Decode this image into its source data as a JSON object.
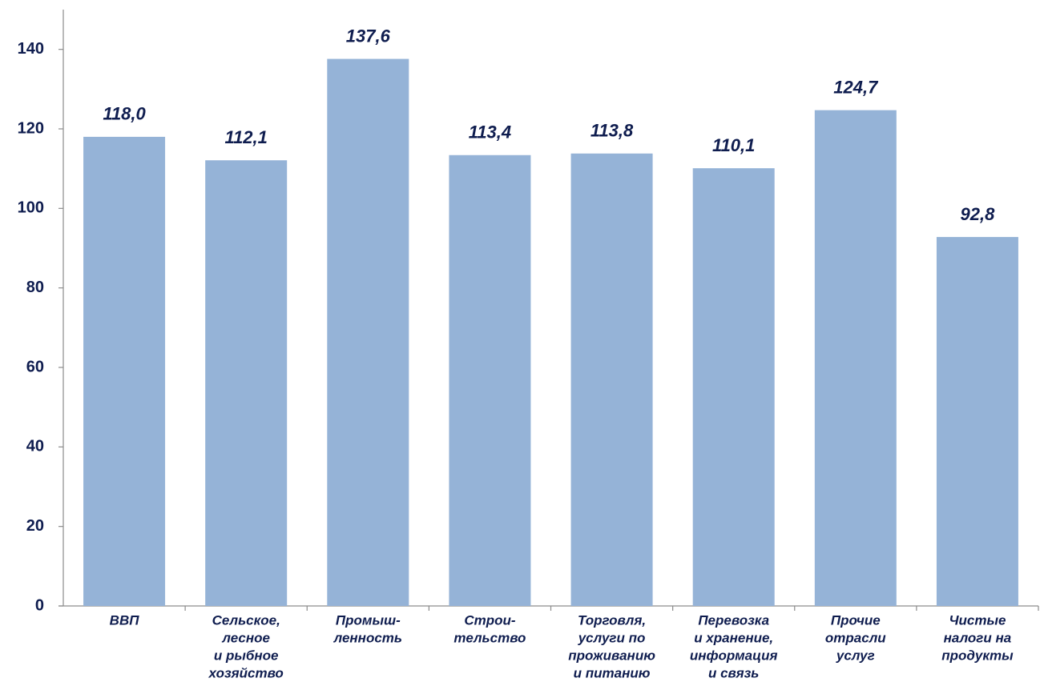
{
  "chart_data": {
    "type": "bar",
    "categories": [
      [
        "ВВП"
      ],
      [
        "Сельское,",
        "лесное",
        "и рыбное",
        "хозяйство"
      ],
      [
        "Промыш-",
        "ленность"
      ],
      [
        "Строи-",
        "тельство"
      ],
      [
        "Торговля,",
        "услуги по",
        "проживанию",
        "и питанию"
      ],
      [
        "Перевозка",
        "и хранение,",
        "информация",
        "и связь"
      ],
      [
        "Прочие",
        "отрасли",
        "услуг"
      ],
      [
        "Чистые",
        "налоги на",
        "продукты"
      ]
    ],
    "values": [
      118.0,
      112.1,
      137.6,
      113.4,
      113.8,
      110.1,
      124.7,
      92.8
    ],
    "value_labels": [
      "118,0",
      "112,1",
      "137,6",
      "113,4",
      "113,8",
      "110,1",
      "124,7",
      "92,8"
    ],
    "color": "#95b3d7",
    "ylim": [
      0,
      150
    ],
    "yticks": [
      0,
      20,
      40,
      60,
      80,
      100,
      120,
      140
    ],
    "grid": false
  }
}
